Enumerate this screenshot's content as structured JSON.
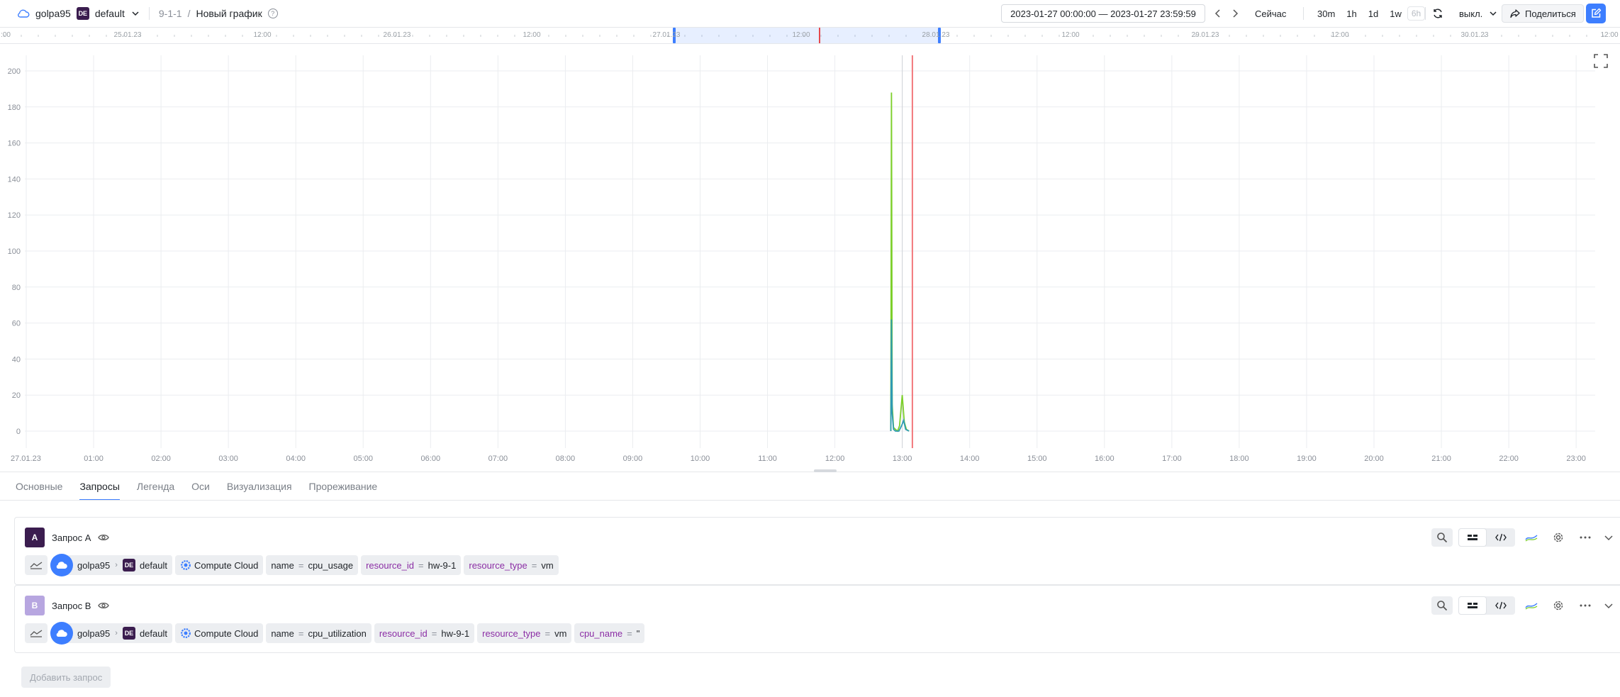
{
  "header": {
    "cloud_name": "golpa95",
    "folder_badge": "DE",
    "folder_name": "default",
    "path": "9-1-1",
    "path_sep": "/",
    "graph_title": "Новый график",
    "help_glyph": "?",
    "time_range": "2023-01-27 00:00:00 — 2023-01-27 23:59:59",
    "now_label": "Сейчас",
    "quick_ranges": [
      "30m",
      "1h",
      "1d",
      "1w",
      "6h"
    ],
    "refresh_label": "выкл.",
    "share_label": "Поделиться"
  },
  "navigator": {
    "labels": [
      {
        "text": ":00",
        "pos": "start"
      },
      {
        "text": "25.01.23"
      },
      {
        "text": "12:00"
      },
      {
        "text": "26.01.23"
      },
      {
        "text": "12:00"
      },
      {
        "text": "27.01.23"
      },
      {
        "text": "12:00"
      },
      {
        "text": "28.01.23"
      },
      {
        "text": "12:00"
      },
      {
        "text": "29.01.23"
      },
      {
        "text": "12:00"
      },
      {
        "text": "30.01.23"
      },
      {
        "text": "12:00"
      }
    ]
  },
  "chart_data": {
    "type": "line",
    "x_tick_labels": [
      "27.01.23",
      "01:00",
      "02:00",
      "03:00",
      "04:00",
      "05:00",
      "06:00",
      "07:00",
      "08:00",
      "09:00",
      "10:00",
      "11:00",
      "12:00",
      "13:00",
      "14:00",
      "15:00",
      "16:00",
      "17:00",
      "18:00",
      "19:00",
      "20:00",
      "21:00",
      "22:00",
      "23:00"
    ],
    "y_tick_labels": [
      "0",
      "20",
      "40",
      "60",
      "80",
      "100",
      "120",
      "140",
      "160",
      "180",
      "200"
    ],
    "xlim_hours": [
      0,
      24
    ],
    "ylim": [
      0,
      200
    ],
    "grid": true,
    "now_marker_hours": 13.15,
    "series": [
      {
        "color": "#7ccf2a",
        "points": [
          [
            12.83,
            0
          ],
          [
            12.84,
            188
          ],
          [
            12.85,
            15
          ],
          [
            12.87,
            2
          ],
          [
            12.9,
            1
          ],
          [
            12.93,
            0
          ],
          [
            12.96,
            3
          ],
          [
            13.0,
            20
          ],
          [
            13.03,
            5
          ],
          [
            13.06,
            1
          ],
          [
            13.1,
            0
          ]
        ]
      },
      {
        "color": "#2f9bb3",
        "points": [
          [
            12.83,
            0
          ],
          [
            12.84,
            62
          ],
          [
            12.85,
            10
          ],
          [
            12.87,
            1
          ],
          [
            12.9,
            0
          ],
          [
            12.95,
            0
          ],
          [
            12.99,
            3
          ],
          [
            13.02,
            6
          ],
          [
            13.05,
            1
          ],
          [
            13.1,
            0
          ]
        ]
      }
    ]
  },
  "tabs": [
    {
      "label": "Основные",
      "active": false
    },
    {
      "label": "Запросы",
      "active": true
    },
    {
      "label": "Легенда",
      "active": false
    },
    {
      "label": "Оси",
      "active": false
    },
    {
      "label": "Визуализация",
      "active": false
    },
    {
      "label": "Прореживание",
      "active": false
    }
  ],
  "queries": [
    {
      "letter": "A",
      "letter_color": "#3b1d4f",
      "name": "Запрос A",
      "cloud": "golpa95",
      "folder_badge": "DE",
      "folder": "default",
      "service": "Compute Cloud",
      "labels": [
        {
          "key": "name",
          "value": "cpu_usage",
          "kind": "name"
        },
        {
          "key": "resource_id",
          "value": "hw-9-1",
          "kind": "label"
        },
        {
          "key": "resource_type",
          "value": "vm",
          "kind": "label"
        }
      ]
    },
    {
      "letter": "B",
      "letter_color": "#b7a6e0",
      "name": "Запрос B",
      "cloud": "golpa95",
      "folder_badge": "DE",
      "folder": "default",
      "service": "Compute Cloud",
      "labels": [
        {
          "key": "name",
          "value": "cpu_utilization",
          "kind": "name"
        },
        {
          "key": "resource_id",
          "value": "hw-9-1",
          "kind": "label"
        },
        {
          "key": "resource_type",
          "value": "vm",
          "kind": "label"
        },
        {
          "key": "cpu_name",
          "value": "\"",
          "kind": "label"
        }
      ]
    }
  ],
  "add_query_label": "Добавить запрос"
}
